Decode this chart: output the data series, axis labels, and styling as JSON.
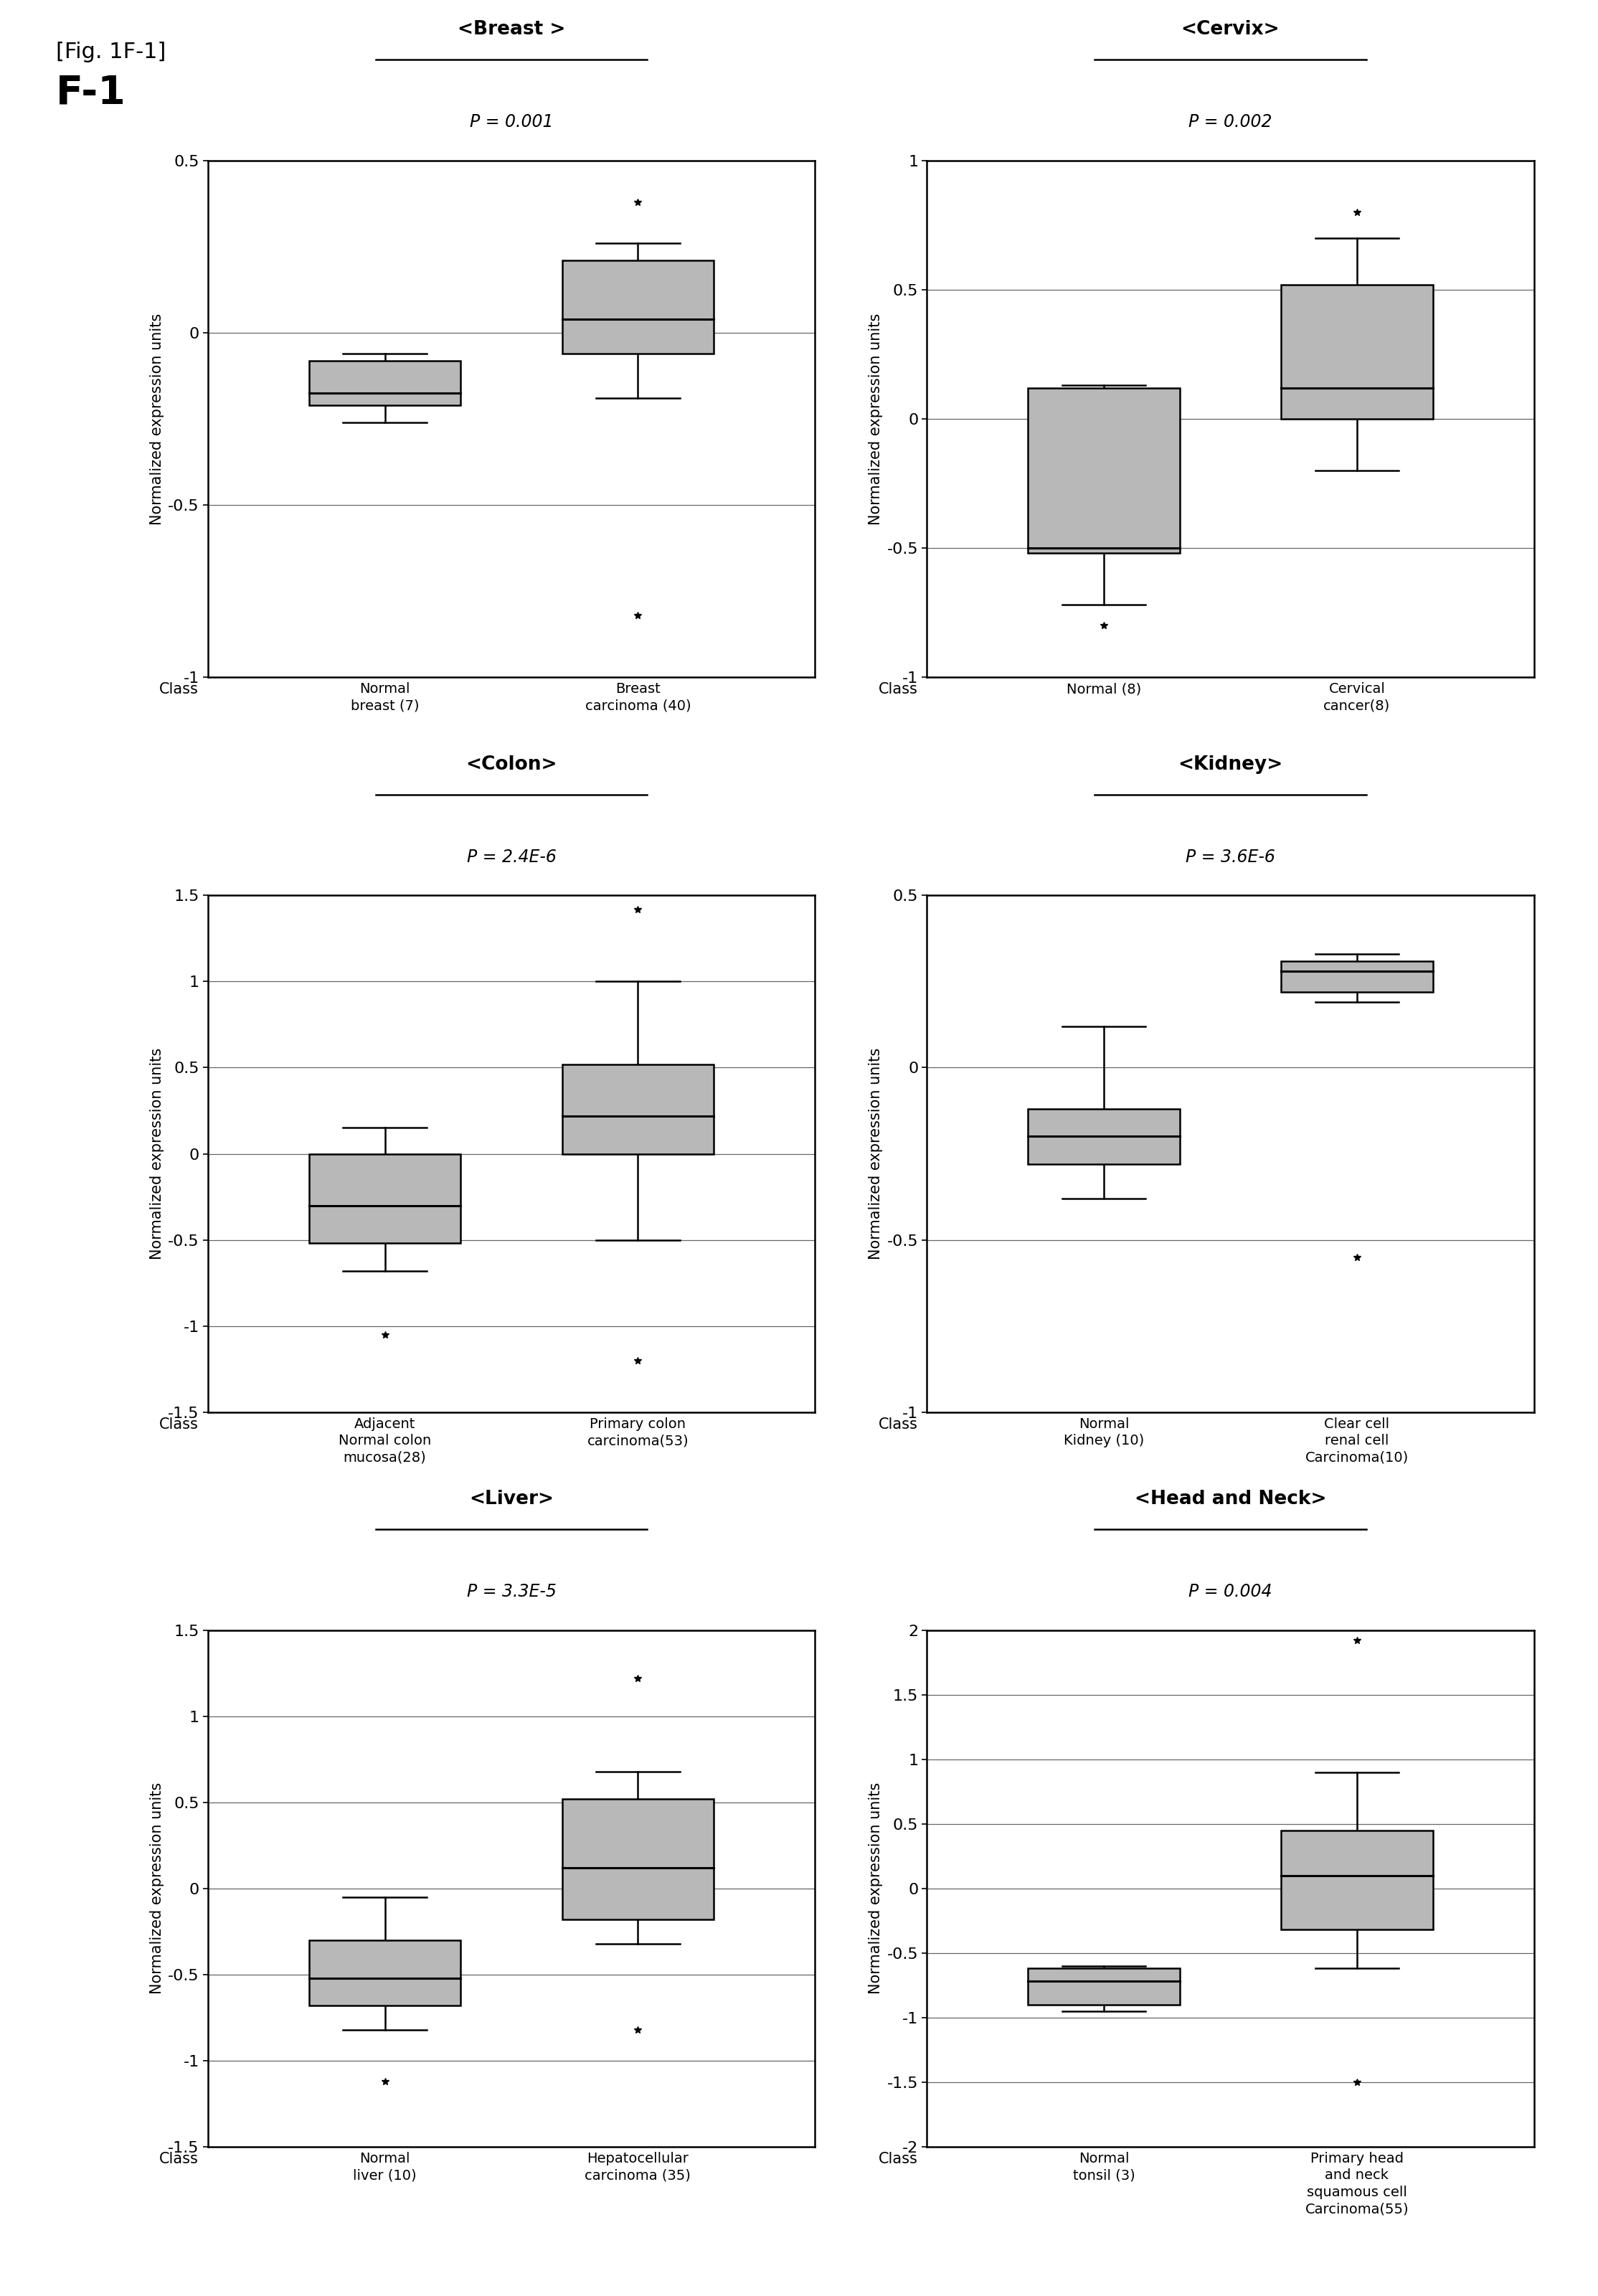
{
  "fig_label": "[Fig. 1F-1]",
  "fig_title": "F-1",
  "background_color": "#ffffff",
  "ylabel": "Normalized expression units",
  "xlabel_class": "Class",
  "plots": [
    {
      "title": "<Breast >",
      "pvalue": "P = 0.001",
      "ylim": [
        -1.0,
        0.5
      ],
      "yticks": [
        -1.0,
        -0.5,
        0.0,
        0.5
      ],
      "groups": [
        {
          "label": "Normal\nbreast (7)",
          "median": -0.175,
          "q1": -0.21,
          "q3": -0.08,
          "whislo": -0.26,
          "whishi": -0.06,
          "fliers": []
        },
        {
          "label": "Breast\ncarcinoma (40)",
          "median": 0.04,
          "q1": -0.06,
          "q3": 0.21,
          "whislo": -0.19,
          "whishi": 0.26,
          "fliers": [
            0.38,
            -0.82
          ]
        }
      ]
    },
    {
      "title": "<Cervix>",
      "pvalue": "P = 0.002",
      "ylim": [
        -1.0,
        1.0
      ],
      "yticks": [
        -1.0,
        -0.5,
        0.0,
        0.5,
        1.0
      ],
      "groups": [
        {
          "label": "Normal (8)",
          "median": -0.5,
          "q1": -0.52,
          "q3": 0.12,
          "whislo": -0.72,
          "whishi": 0.13,
          "fliers": [
            -0.8
          ]
        },
        {
          "label": "Cervical\ncancer(8)",
          "median": 0.12,
          "q1": 0.0,
          "q3": 0.52,
          "whislo": -0.2,
          "whishi": 0.7,
          "fliers": [
            0.8
          ]
        }
      ]
    },
    {
      "title": "<Colon>",
      "pvalue": "P = 2.4E-6",
      "ylim": [
        -1.5,
        1.5
      ],
      "yticks": [
        -1.5,
        -1.0,
        -0.5,
        0.0,
        0.5,
        1.0,
        1.5
      ],
      "groups": [
        {
          "label": "Adjacent\nNormal colon\nmucosa(28)",
          "median": -0.3,
          "q1": -0.52,
          "q3": 0.0,
          "whislo": -0.68,
          "whishi": 0.15,
          "fliers": [
            -1.05
          ]
        },
        {
          "label": "Primary colon\ncarcinoma(53)",
          "median": 0.22,
          "q1": 0.0,
          "q3": 0.52,
          "whislo": -0.5,
          "whishi": 1.0,
          "fliers": [
            -1.2,
            1.42
          ]
        }
      ]
    },
    {
      "title": "<Kidney>",
      "pvalue": "P = 3.6E-6",
      "ylim": [
        -1.0,
        0.5
      ],
      "yticks": [
        -1.0,
        -0.5,
        0.0,
        0.5
      ],
      "groups": [
        {
          "label": "Normal\nKidney (10)",
          "median": -0.2,
          "q1": -0.28,
          "q3": -0.12,
          "whislo": -0.38,
          "whishi": 0.12,
          "fliers": []
        },
        {
          "label": "Clear cell\nrenal cell\nCarcinoma(10)",
          "median": 0.28,
          "q1": 0.22,
          "q3": 0.31,
          "whislo": 0.19,
          "whishi": 0.33,
          "fliers": [
            -0.55
          ]
        }
      ]
    },
    {
      "title": "<Liver>",
      "pvalue": "P = 3.3E-5",
      "ylim": [
        -1.5,
        1.5
      ],
      "yticks": [
        -1.5,
        -1.0,
        -0.5,
        0.0,
        0.5,
        1.0,
        1.5
      ],
      "groups": [
        {
          "label": "Normal\nliver (10)",
          "median": -0.52,
          "q1": -0.68,
          "q3": -0.3,
          "whislo": -0.82,
          "whishi": -0.05,
          "fliers": [
            -1.12
          ]
        },
        {
          "label": "Hepatocellular\ncarcinoma (35)",
          "median": 0.12,
          "q1": -0.18,
          "q3": 0.52,
          "whislo": -0.32,
          "whishi": 0.68,
          "fliers": [
            1.22,
            -0.82
          ]
        }
      ]
    },
    {
      "title": "<Head and Neck>",
      "pvalue": "P = 0.004",
      "ylim": [
        -2.0,
        2.0
      ],
      "yticks": [
        -2.0,
        -1.5,
        -1.0,
        -0.5,
        0.0,
        0.5,
        1.0,
        1.5,
        2.0
      ],
      "groups": [
        {
          "label": "Normal\ntonsil (3)",
          "median": -0.72,
          "q1": -0.9,
          "q3": -0.62,
          "whislo": -0.95,
          "whishi": -0.6,
          "fliers": []
        },
        {
          "label": "Primary head\nand neck\nsquamous cell\nCarcinoma(55)",
          "median": 0.1,
          "q1": -0.32,
          "q3": 0.45,
          "whislo": -0.62,
          "whishi": 0.9,
          "fliers": [
            -1.5,
            1.92
          ]
        }
      ]
    }
  ],
  "box_facecolor": "#b8b8b8",
  "median_color": "#000000",
  "whisker_color": "#000000",
  "flier_marker": "*",
  "flier_size": 7
}
